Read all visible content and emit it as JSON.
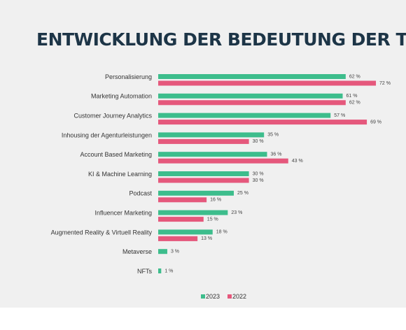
{
  "chart_data": {
    "type": "hbar",
    "title": "ENTWICKLUNG DER BEDEUTUNG DER TRENDS",
    "categories": [
      "Personalisierung",
      "Marketing Automation",
      "Customer Journey Analytics",
      "Inhousing der Agenturleistungen",
      "Account Based Marketing",
      "KI & Machine Learning",
      "Podcast",
      "Influencer Marketing",
      "Augmented Reality & Virtuell Reality",
      "Metaverse",
      "NFTs"
    ],
    "series": [
      {
        "name": "2023",
        "color": "#3dbd8c",
        "values": [
          62,
          61,
          57,
          35,
          36,
          30,
          25,
          23,
          18,
          3,
          1
        ],
        "value_labels": [
          "62 %",
          "61 %",
          "57 %",
          "35 %",
          "36 %",
          "30 %",
          "25 %",
          "23 %",
          "18 %",
          "3 %",
          "1 %"
        ]
      },
      {
        "name": "2022",
        "color": "#e5587c",
        "values": [
          72,
          62,
          69,
          30,
          43,
          30,
          16,
          15,
          13,
          null,
          null
        ],
        "value_labels": [
          "72 %",
          "62 %",
          "69 %",
          "30 %",
          "43 %",
          "30 %",
          "16 %",
          "15 %",
          "13 %",
          null,
          null
        ]
      }
    ],
    "legend": "bottom"
  }
}
